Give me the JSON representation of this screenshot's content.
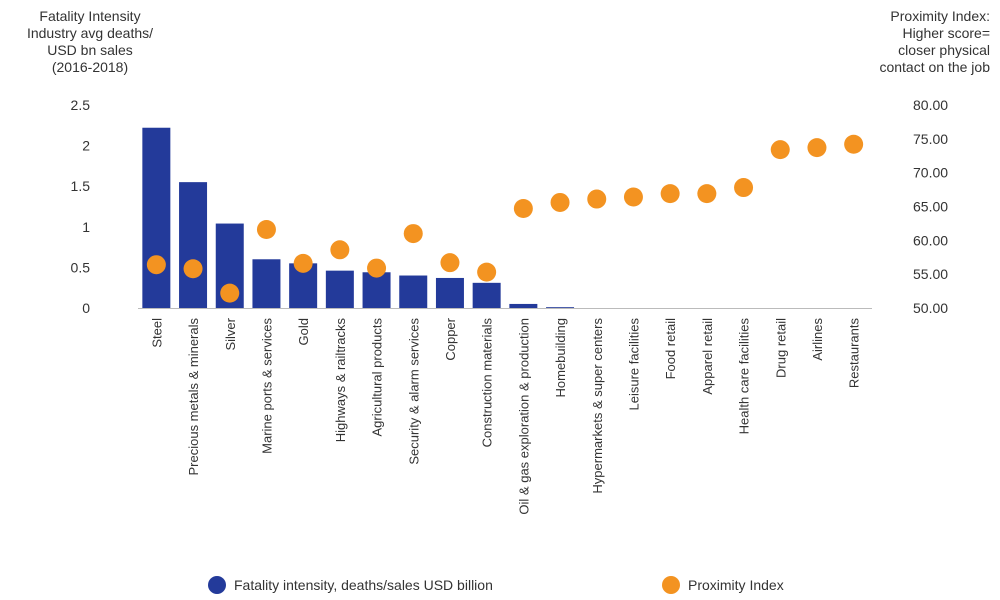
{
  "chart_data": {
    "type": "bar",
    "left_axis_label_lines": [
      "Fatality Intensity",
      "Industry avg deaths/",
      "USD bn sales",
      "(2016-2018)"
    ],
    "right_axis_label_lines": [
      "Proximity Index:",
      "Higher score=",
      "closer physical",
      "contact on the job"
    ],
    "left_ylim": [
      0,
      2.5
    ],
    "left_ticks": [
      "0",
      "0.5",
      "1",
      "1.5",
      "2",
      "2.5"
    ],
    "right_ylim": [
      50,
      80
    ],
    "right_ticks": [
      "50.00",
      "55.00",
      "60.00",
      "65.00",
      "70.00",
      "75.00",
      "80.00"
    ],
    "grid": false,
    "legend_position": "bottom",
    "categories": [
      "Steel",
      "Precious metals & minerals",
      "Silver",
      "Marine ports & services",
      "Gold",
      "Highways & railtracks",
      "Agricultural products",
      "Security & alarm services",
      "Copper",
      "Construction materials",
      "Oil & gas exploration & production",
      "Homebuilding",
      "Hypermarkets & super centers",
      "Leisure facilities",
      "Food retail",
      "Apparel retail",
      "Health care facilities",
      "Drug retail",
      "Airlines",
      "Restaurants"
    ],
    "series": [
      {
        "name": "Fatality intensity, deaths/sales USD billion",
        "type": "bar",
        "axis": "left",
        "color": "#233a9a",
        "values": [
          2.22,
          1.55,
          1.04,
          0.6,
          0.55,
          0.46,
          0.44,
          0.4,
          0.37,
          0.31,
          0.05,
          0.01,
          0,
          0,
          0,
          0,
          0,
          0,
          0,
          0
        ]
      },
      {
        "name": "Proximity Index",
        "type": "scatter",
        "axis": "right",
        "color": "#f39321",
        "values": [
          56.4,
          55.8,
          52.2,
          61.6,
          56.6,
          58.6,
          55.9,
          61.0,
          56.7,
          55.3,
          64.7,
          65.6,
          66.1,
          66.4,
          66.9,
          66.9,
          67.8,
          73.4,
          73.7,
          74.2
        ]
      }
    ]
  }
}
